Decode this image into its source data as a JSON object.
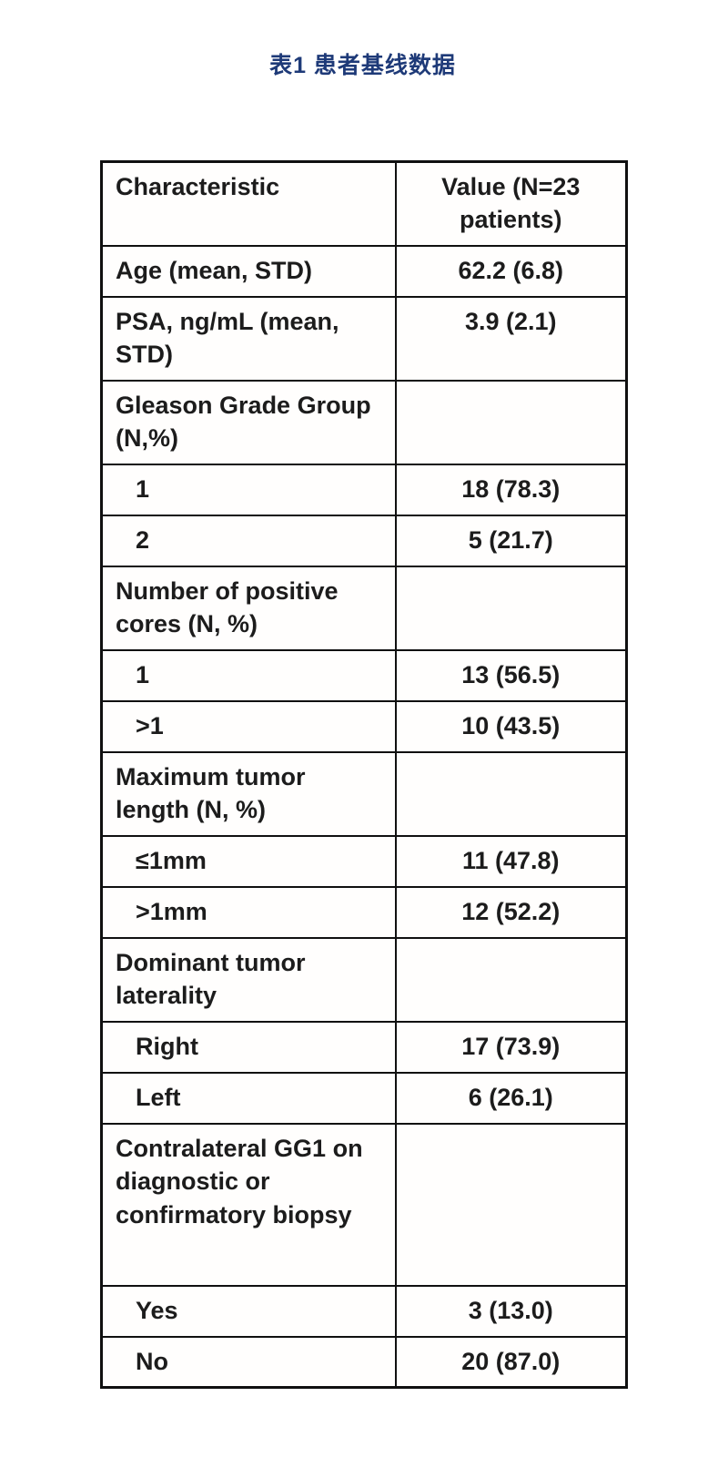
{
  "page": {
    "title": "表1  患者基线数据",
    "title_color": "#1e3a78"
  },
  "table": {
    "columns": {
      "characteristic": "Characteristic",
      "value": "Value (N=23 patients)"
    },
    "n_patients": 23,
    "rows": [
      {
        "label": "Age (mean, STD)",
        "value": "62.2 (6.8)",
        "indent": false
      },
      {
        "label": "PSA, ng/mL (mean, STD)",
        "value": "3.9 (2.1)",
        "indent": false
      },
      {
        "label": "Gleason Grade Group (N,%)",
        "value": "",
        "indent": false
      },
      {
        "label": "1",
        "value": "18 (78.3)",
        "indent": true
      },
      {
        "label": "2",
        "value": "5 (21.7)",
        "indent": true
      },
      {
        "label": "Number of positive cores (N, %)",
        "value": "",
        "indent": false
      },
      {
        "label": "1",
        "value": "13 (56.5)",
        "indent": true
      },
      {
        "label": ">1",
        "value": "10 (43.5)",
        "indent": true
      },
      {
        "label": "Maximum tumor length (N, %)",
        "value": "",
        "indent": false
      },
      {
        "label": "≤1mm",
        "value": "11 (47.8)",
        "indent": true
      },
      {
        "label": ">1mm",
        "value": "12 (52.2)",
        "indent": true
      },
      {
        "label": "Dominant tumor laterality",
        "value": "",
        "indent": false
      },
      {
        "label": "Right",
        "value": "17 (73.9)",
        "indent": true
      },
      {
        "label": "Left",
        "value": "6 (26.1)",
        "indent": true
      },
      {
        "label": "Contralateral GG1 on diagnostic or confirmatory biopsy",
        "value": "",
        "indent": false
      },
      {
        "label": "Yes",
        "value": "3 (13.0)",
        "indent": true
      },
      {
        "label": "No",
        "value": "20 (87.0)",
        "indent": true
      }
    ]
  }
}
